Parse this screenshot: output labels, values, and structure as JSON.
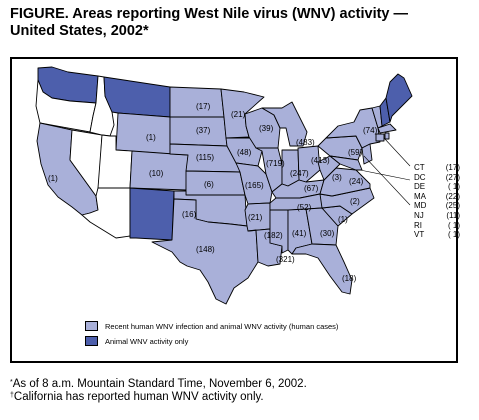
{
  "title": "FIGURE. Areas reporting West Nile virus (WNV) activity —\nUnited States, 2002*",
  "colors": {
    "human": "#a9b0d9",
    "animal": "#4d5fac",
    "none": "#ffffff",
    "border": "#000000"
  },
  "map": {
    "label_counts": [
      "(17)",
      "(21)",
      "(39)",
      "(483)",
      "(74)",
      "(1)",
      "(37)",
      "(59)",
      "(1)",
      "(10)",
      "(115)",
      "(48)",
      "(719)",
      "(413)",
      "(247)",
      "(3)",
      "(6)",
      "(165)",
      "(67)",
      "(24)",
      "(16)",
      "(21)",
      "(52)",
      "(2)",
      "(182)",
      "(41)",
      "(30)",
      "(1)",
      "(148)",
      "(321)",
      "(18)"
    ]
  },
  "small_states": [
    {
      "abbr": "CT",
      "count": "(17)"
    },
    {
      "abbr": "DC",
      "count": "(27)"
    },
    {
      "abbr": "DE",
      "count": "( 1)"
    },
    {
      "abbr": "MA",
      "count": "(22)"
    },
    {
      "abbr": "MD",
      "count": "(25)"
    },
    {
      "abbr": "NJ",
      "count": "(11)"
    },
    {
      "abbr": "RI",
      "count": "( 1)"
    },
    {
      "abbr": "VT",
      "count": "( 1)"
    }
  ],
  "legend": [
    {
      "label": "Recent human WNV infection and animal WNV activity (human cases)",
      "color": "#a9b0d9"
    },
    {
      "label": "Animal WNV activity only",
      "color": "#4d5fac"
    }
  ],
  "footnotes": [
    {
      "mark": "*",
      "text": "As of 8 a.m. Mountain Standard Time, November 6, 2002."
    },
    {
      "mark": "†",
      "text": "California has reported human WNV activity only."
    }
  ]
}
